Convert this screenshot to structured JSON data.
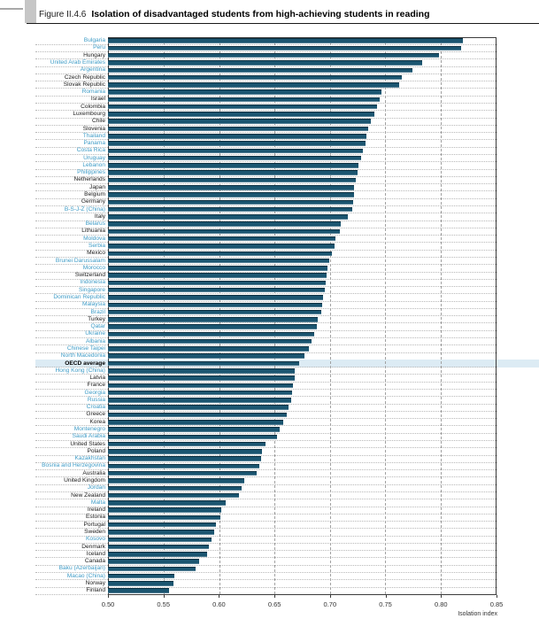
{
  "header": {
    "figure_label": "Figure II.4.6",
    "title": "Isolation of disadvantaged students from high-achieving students in reading"
  },
  "chart_data": {
    "type": "bar",
    "orientation": "horizontal",
    "title": "Isolation of disadvantaged students from high-achieving students in reading",
    "xlabel": "Isolation index",
    "xlim": [
      0.5,
      0.85
    ],
    "x_ticks": [
      0.5,
      0.55,
      0.6,
      0.65,
      0.7,
      0.75,
      0.8,
      0.85
    ],
    "grid": true,
    "bar_color": "#1b5570",
    "partner_label_color": "#3f9cc7",
    "member_label_color": "#1a1a1a",
    "highlight_row": "OECD average",
    "highlight_color": "#dcebf4",
    "rows": [
      {
        "label": "Bulgaria",
        "group": "partner",
        "value": 0.82
      },
      {
        "label": "Peru",
        "group": "partner",
        "value": 0.818
      },
      {
        "label": "Hungary",
        "group": "member",
        "value": 0.798
      },
      {
        "label": "United Arab Emirates",
        "group": "partner",
        "value": 0.783
      },
      {
        "label": "Argentina",
        "group": "partner",
        "value": 0.774
      },
      {
        "label": "Czech Republic",
        "group": "member",
        "value": 0.765
      },
      {
        "label": "Slovak Republic",
        "group": "member",
        "value": 0.762
      },
      {
        "label": "Romania",
        "group": "partner",
        "value": 0.746
      },
      {
        "label": "Israel",
        "group": "member",
        "value": 0.745
      },
      {
        "label": "Colombia",
        "group": "member",
        "value": 0.742
      },
      {
        "label": "Luxembourg",
        "group": "member",
        "value": 0.74
      },
      {
        "label": "Chile",
        "group": "member",
        "value": 0.737
      },
      {
        "label": "Slovenia",
        "group": "member",
        "value": 0.734
      },
      {
        "label": "Thailand",
        "group": "partner",
        "value": 0.733
      },
      {
        "label": "Panama",
        "group": "partner",
        "value": 0.732
      },
      {
        "label": "Costa Rica",
        "group": "partner",
        "value": 0.73
      },
      {
        "label": "Uruguay",
        "group": "partner",
        "value": 0.728
      },
      {
        "label": "Lebanon",
        "group": "partner",
        "value": 0.726
      },
      {
        "label": "Philippines",
        "group": "partner",
        "value": 0.725
      },
      {
        "label": "Netherlands",
        "group": "member",
        "value": 0.723
      },
      {
        "label": "Japan",
        "group": "member",
        "value": 0.722
      },
      {
        "label": "Belgium",
        "group": "member",
        "value": 0.722
      },
      {
        "label": "Germany",
        "group": "member",
        "value": 0.721
      },
      {
        "label": "B-S-J-Z (China)",
        "group": "partner",
        "value": 0.72
      },
      {
        "label": "Italy",
        "group": "member",
        "value": 0.716
      },
      {
        "label": "Belarus",
        "group": "partner",
        "value": 0.71
      },
      {
        "label": "Lithuania",
        "group": "member",
        "value": 0.709
      },
      {
        "label": "Moldova",
        "group": "partner",
        "value": 0.705
      },
      {
        "label": "Serbia",
        "group": "partner",
        "value": 0.704
      },
      {
        "label": "Mexico",
        "group": "member",
        "value": 0.702
      },
      {
        "label": "Brunei Darussalam",
        "group": "partner",
        "value": 0.699
      },
      {
        "label": "Morocco",
        "group": "partner",
        "value": 0.698
      },
      {
        "label": "Switzerland",
        "group": "member",
        "value": 0.697
      },
      {
        "label": "Indonesia",
        "group": "partner",
        "value": 0.696
      },
      {
        "label": "Singapore",
        "group": "partner",
        "value": 0.695
      },
      {
        "label": "Dominican Republic",
        "group": "partner",
        "value": 0.694
      },
      {
        "label": "Malaysia",
        "group": "partner",
        "value": 0.693
      },
      {
        "label": "Brazil",
        "group": "partner",
        "value": 0.692
      },
      {
        "label": "Turkey",
        "group": "member",
        "value": 0.689
      },
      {
        "label": "Qatar",
        "group": "partner",
        "value": 0.688
      },
      {
        "label": "Ukraine",
        "group": "partner",
        "value": 0.686
      },
      {
        "label": "Albania",
        "group": "partner",
        "value": 0.683
      },
      {
        "label": "Chinese Taipei",
        "group": "partner",
        "value": 0.681
      },
      {
        "label": "North Macedonia",
        "group": "partner",
        "value": 0.677
      },
      {
        "label": "OECD average",
        "group": "average",
        "value": 0.672
      },
      {
        "label": "Hong Kong (China)",
        "group": "partner",
        "value": 0.668
      },
      {
        "label": "Latvia",
        "group": "member",
        "value": 0.668
      },
      {
        "label": "France",
        "group": "member",
        "value": 0.667
      },
      {
        "label": "Georgia",
        "group": "partner",
        "value": 0.666
      },
      {
        "label": "Russia",
        "group": "partner",
        "value": 0.665
      },
      {
        "label": "Croatia",
        "group": "partner",
        "value": 0.663
      },
      {
        "label": "Greece",
        "group": "member",
        "value": 0.661
      },
      {
        "label": "Korea",
        "group": "member",
        "value": 0.658
      },
      {
        "label": "Montenegro",
        "group": "partner",
        "value": 0.655
      },
      {
        "label": "Saudi Arabia",
        "group": "partner",
        "value": 0.652
      },
      {
        "label": "United States",
        "group": "member",
        "value": 0.642
      },
      {
        "label": "Poland",
        "group": "member",
        "value": 0.639
      },
      {
        "label": "Kazakhstan",
        "group": "partner",
        "value": 0.638
      },
      {
        "label": "Bosnia and Herzegovina",
        "group": "partner",
        "value": 0.636
      },
      {
        "label": "Australia",
        "group": "member",
        "value": 0.634
      },
      {
        "label": "United Kingdom",
        "group": "member",
        "value": 0.623
      },
      {
        "label": "Jordan",
        "group": "partner",
        "value": 0.62
      },
      {
        "label": "New Zealand",
        "group": "member",
        "value": 0.618
      },
      {
        "label": "Malta",
        "group": "partner",
        "value": 0.606
      },
      {
        "label": "Ireland",
        "group": "member",
        "value": 0.602
      },
      {
        "label": "Estonia",
        "group": "member",
        "value": 0.601
      },
      {
        "label": "Portugal",
        "group": "member",
        "value": 0.597
      },
      {
        "label": "Sweden",
        "group": "member",
        "value": 0.596
      },
      {
        "label": "Kosovo",
        "group": "partner",
        "value": 0.593
      },
      {
        "label": "Denmark",
        "group": "member",
        "value": 0.591
      },
      {
        "label": "Iceland",
        "group": "member",
        "value": 0.589
      },
      {
        "label": "Canada",
        "group": "member",
        "value": 0.582
      },
      {
        "label": "Baku (Azerbaijan)",
        "group": "partner",
        "value": 0.579
      },
      {
        "label": "Macao (China)",
        "group": "partner",
        "value": 0.56
      },
      {
        "label": "Norway",
        "group": "member",
        "value": 0.559
      },
      {
        "label": "Finland",
        "group": "member",
        "value": 0.555
      }
    ]
  }
}
